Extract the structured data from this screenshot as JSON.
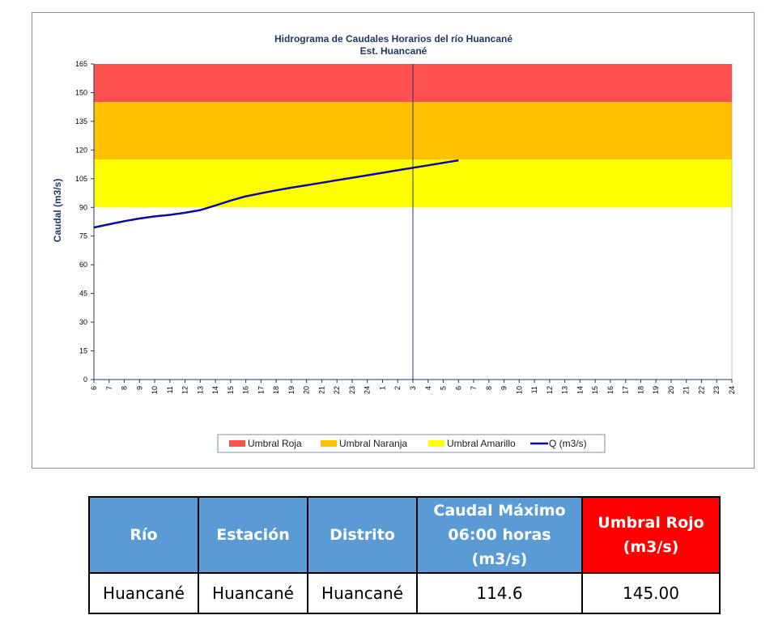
{
  "chart_data": {
    "type": "line",
    "title": "Hidrograma de Caudales Horarios del río Huancané",
    "subtitle": "Est. Huancané",
    "ylabel": "Caudal  (m3/s)",
    "ylim": [
      0,
      165
    ],
    "yticks": [
      0,
      15,
      30,
      45,
      60,
      75,
      90,
      105,
      120,
      135,
      150,
      165
    ],
    "xticks": [
      "6",
      "7",
      "8",
      "9",
      "10",
      "11",
      "12",
      "13",
      "14",
      "15",
      "16",
      "17",
      "18",
      "19",
      "20",
      "21",
      "22",
      "23",
      "24",
      "1",
      "2",
      "3",
      "4",
      "5",
      "6",
      "7",
      "8",
      "9",
      "10",
      "11",
      "12",
      "13",
      "14",
      "15",
      "16",
      "17",
      "18",
      "19",
      "20",
      "21",
      "22",
      "23",
      "24"
    ],
    "current_time_index": 21,
    "thresholds": [
      {
        "name": "Umbral Roja",
        "from": 145,
        "to": 165,
        "color": "#ff5050"
      },
      {
        "name": "Umbral Naranja",
        "from": 115,
        "to": 145,
        "color": "#ffc000"
      },
      {
        "name": "Umbral Amarillo",
        "from": 90,
        "to": 115,
        "color": "#ffff00"
      }
    ],
    "series": [
      {
        "name": "Q (m3/s)",
        "color": "#0a0a9c",
        "x": [
          0,
          1,
          2,
          3,
          4,
          5,
          6,
          7,
          8,
          9,
          10,
          11,
          12,
          13,
          14,
          15,
          16,
          17,
          18,
          19,
          20,
          21,
          22,
          23,
          24
        ],
        "values": [
          79.5,
          81.2,
          82.8,
          84.2,
          85.3,
          86.1,
          87.2,
          88.6,
          91.0,
          93.6,
          95.8,
          97.4,
          98.9,
          100.3,
          101.6,
          102.9,
          104.2,
          105.5,
          106.8,
          108.1,
          109.4,
          110.7,
          112.0,
          113.3,
          114.6
        ]
      }
    ],
    "legend": {
      "position": "bottom"
    }
  },
  "table": {
    "headers": [
      "Río",
      "Estación",
      "Distrito",
      "Caudal Máximo 06:00 horas (m3/s)",
      "Umbral Rojo (m3/s)"
    ],
    "row": [
      "Huancané",
      "Huancané",
      "Huancané",
      "114.6",
      "145.00"
    ]
  }
}
